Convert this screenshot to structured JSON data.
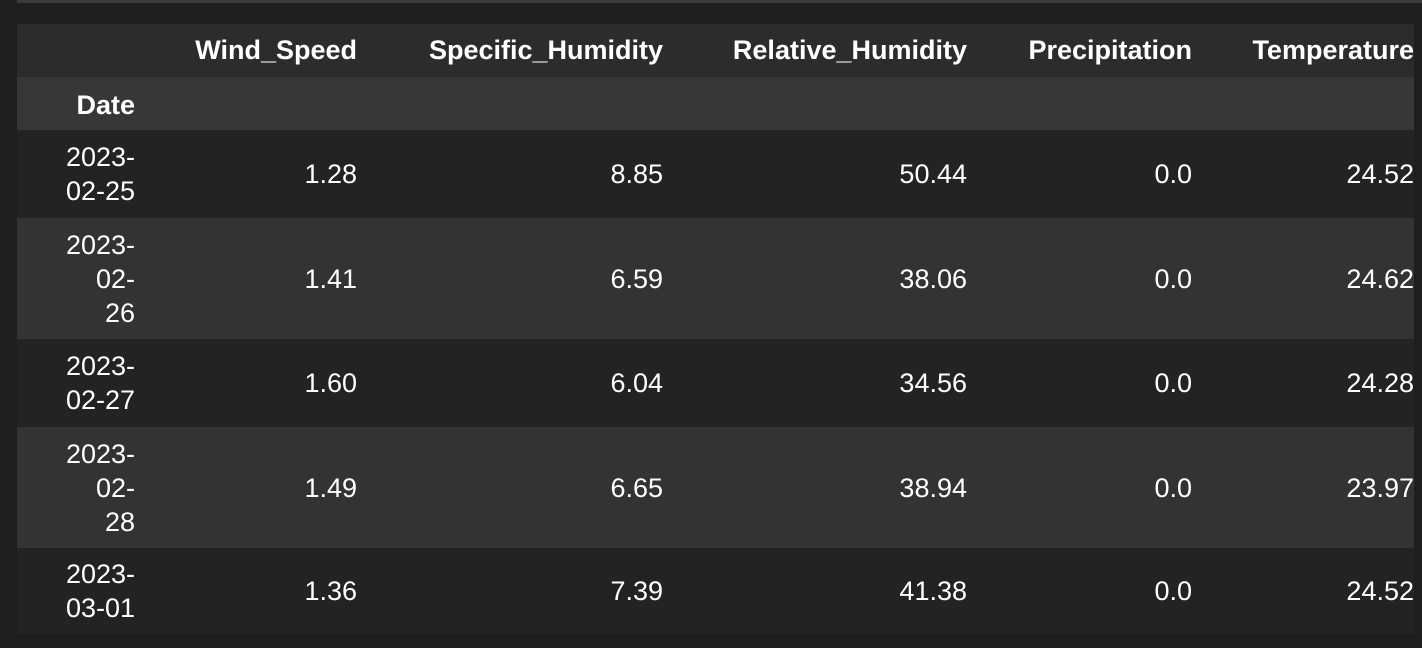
{
  "table": {
    "columns": [
      "Wind_Speed",
      "Specific_Humidity",
      "Relative_Humidity",
      "Precipitation",
      "Temperature"
    ],
    "index_name": "Date",
    "rows": [
      {
        "date_lines": [
          "2023-",
          "02-25"
        ],
        "values": [
          "1.28",
          "8.85",
          "50.44",
          "0.0",
          "24.52"
        ]
      },
      {
        "date_lines": [
          "2023-",
          "02-",
          "26"
        ],
        "values": [
          "1.41",
          "6.59",
          "38.06",
          "0.0",
          "24.62"
        ]
      },
      {
        "date_lines": [
          "2023-",
          "02-27"
        ],
        "values": [
          "1.60",
          "6.04",
          "34.56",
          "0.0",
          "24.28"
        ]
      },
      {
        "date_lines": [
          "2023-",
          "02-",
          "28"
        ],
        "values": [
          "1.49",
          "6.65",
          "38.94",
          "0.0",
          "23.97"
        ]
      },
      {
        "date_lines": [
          "2023-",
          "03-01"
        ],
        "values": [
          "1.36",
          "7.39",
          "41.38",
          "0.0",
          "24.52"
        ]
      }
    ]
  }
}
